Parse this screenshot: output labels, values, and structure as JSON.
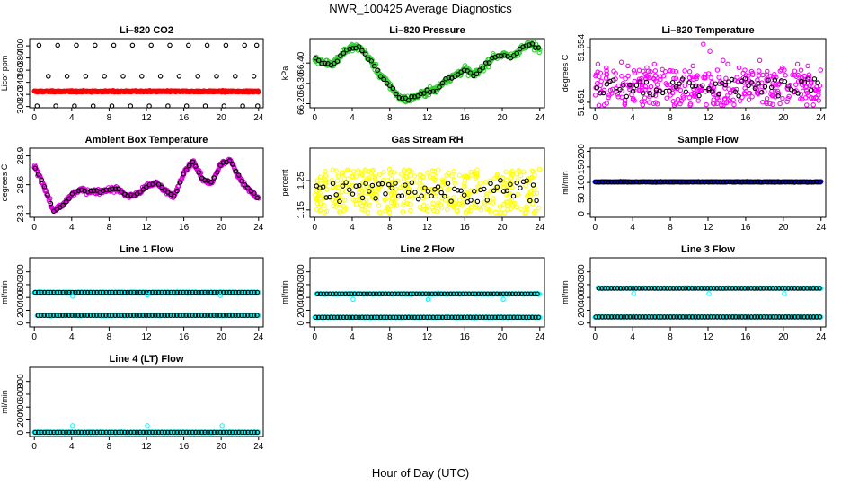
{
  "figure": {
    "title": "NWR_100425  Average Diagnostics",
    "xlabel": "Hour of Day (UTC)"
  },
  "chart_data": [
    {
      "id": "co2",
      "type": "scatter",
      "title": "Li–820 CO2",
      "ylabel": "Licor ppm",
      "xlim": [
        -0.5,
        24.5
      ],
      "ylim": [
        298,
        412
      ],
      "yticks": [
        300,
        320,
        340,
        360,
        380,
        400
      ],
      "xticks": [
        0,
        4,
        8,
        12,
        16,
        20,
        24
      ],
      "series": [
        {
          "name": "reference",
          "color": "#ff0000",
          "style": "dense_band",
          "x0": 0,
          "x1": 24,
          "y": 325,
          "jitter": 1.5
        },
        {
          "name": "ring_top",
          "color": "#000000",
          "style": "open",
          "x": [
            0.5,
            2.5,
            4.5,
            6.5,
            8.5,
            10.5,
            12.5,
            14.5,
            16.5,
            18.5,
            20.5,
            22.5,
            23.8
          ],
          "y": 401
        },
        {
          "name": "ring_mid",
          "color": "#000000",
          "style": "open",
          "x": [
            1.5,
            3.5,
            5.5,
            7.5,
            9.5,
            11.5,
            13.5,
            15.5,
            17.5,
            19.5,
            21.5,
            23.5
          ],
          "y": 350
        },
        {
          "name": "ring_bottom",
          "color": "#000000",
          "style": "open",
          "x": [
            0.3,
            2.3,
            4.3,
            6.3,
            8.3,
            10.3,
            12.3,
            14.3,
            16.3,
            18.3,
            20.3,
            22.3,
            23.9
          ],
          "y": 301
        }
      ]
    },
    {
      "id": "pressure",
      "type": "scatter",
      "title": "Li–820 Pressure",
      "ylabel": "kPa",
      "xlim": [
        -0.5,
        24.5
      ],
      "ylim": [
        66.18,
        66.52
      ],
      "yticks": [
        66.2,
        66.3,
        66.4
      ],
      "ytick_labels": [
        "66.20",
        "66.30",
        "66.40"
      ],
      "xticks": [
        0,
        4,
        8,
        12,
        16,
        20,
        24
      ],
      "series": [
        {
          "name": "pressure",
          "color": "#33cc33",
          "style": "curve_dense",
          "x": [
            0,
            1,
            2,
            3,
            4,
            5,
            6,
            7,
            8,
            9,
            10,
            11,
            12,
            13,
            14,
            15,
            16,
            17,
            18,
            19,
            20,
            21,
            22,
            23,
            24
          ],
          "y": [
            66.42,
            66.4,
            66.4,
            66.45,
            66.48,
            66.47,
            66.41,
            66.34,
            66.29,
            66.23,
            66.22,
            66.24,
            66.26,
            66.27,
            66.32,
            66.34,
            66.37,
            66.34,
            66.38,
            66.43,
            66.44,
            66.43,
            66.47,
            66.49,
            66.47
          ],
          "jitter": 0.012
        }
      ]
    },
    {
      "id": "li820temp",
      "type": "scatter",
      "title": "Li–820 Temperature",
      "ylabel": "degrees C",
      "xlim": [
        -0.5,
        24.5
      ],
      "ylim": [
        51.6507,
        51.6545
      ],
      "yticks": [
        51.651,
        51.654
      ],
      "ytick_labels": [
        "51.651",
        "51.654"
      ],
      "xticks": [
        0,
        4,
        8,
        12,
        16,
        20,
        24
      ],
      "series": [
        {
          "name": "temperature",
          "color": "#ff00ff",
          "style": "scatter_noise",
          "x0": 0,
          "x1": 24,
          "y": [
            51.6508,
            51.6528
          ],
          "count": 350
        },
        {
          "name": "outliers",
          "color": "#ff00ff",
          "style": "open",
          "x": [
            0.3,
            1.2,
            2.8,
            3.5,
            5.5,
            6.3,
            10.4,
            11.5,
            12.2,
            13.6,
            14.1,
            15.3,
            17.5,
            19.9,
            21.5,
            22.6
          ],
          "y": [
            51.6531,
            51.6529,
            51.6532,
            51.653,
            51.6529,
            51.6531,
            51.653,
            51.6542,
            51.6538,
            51.6533,
            51.6531,
            51.6529,
            51.6533,
            51.6529,
            51.6531,
            51.653
          ]
        }
      ]
    },
    {
      "id": "boxtemp",
      "type": "scatter",
      "title": "Ambient Box Temperature",
      "ylabel": "degrees C",
      "xlim": [
        -0.5,
        24.5
      ],
      "ylim": [
        28.26,
        28.98
      ],
      "yticks": [
        28.3,
        28.6,
        28.9
      ],
      "ytick_labels": [
        "28.3",
        "28.6",
        "28.9"
      ],
      "xticks": [
        0,
        4,
        8,
        12,
        16,
        20,
        24
      ],
      "series": [
        {
          "name": "box_temperature",
          "color": "#dd00dd",
          "style": "curve_dense",
          "x": [
            0,
            1,
            2,
            3,
            4,
            5,
            6,
            7,
            8,
            9,
            10,
            11,
            12,
            13,
            14,
            15,
            16,
            17,
            18,
            19,
            20,
            21,
            22,
            23,
            24
          ],
          "y": [
            28.8,
            28.6,
            28.33,
            28.38,
            28.5,
            28.55,
            28.53,
            28.53,
            28.55,
            28.55,
            28.48,
            28.5,
            28.58,
            28.62,
            28.54,
            28.48,
            28.72,
            28.85,
            28.65,
            28.62,
            28.82,
            28.85,
            28.66,
            28.55,
            28.45
          ],
          "jitter": 0.018
        }
      ]
    },
    {
      "id": "rh",
      "type": "scatter",
      "title": "Gas Stream RH",
      "ylabel": "percent",
      "xlim": [
        -0.5,
        24.5
      ],
      "ylim": [
        1.125,
        1.36
      ],
      "yticks": [
        1.15,
        1.25
      ],
      "ytick_labels": [
        "1.15",
        "1.25"
      ],
      "xticks": [
        0,
        4,
        8,
        12,
        16,
        20,
        24
      ],
      "series": [
        {
          "name": "rh",
          "color": "#ffff00",
          "style": "scatter_noise",
          "x0": 0,
          "x1": 24,
          "y": [
            1.14,
            1.29
          ],
          "count": 420
        }
      ]
    },
    {
      "id": "sampleflow",
      "type": "scatter",
      "title": "Sample Flow",
      "ylabel": "ml/min",
      "xlim": [
        -0.5,
        24.5
      ],
      "ylim": [
        -12,
        210
      ],
      "yticks": [
        0,
        50,
        100,
        150,
        200
      ],
      "xticks": [
        0,
        4,
        8,
        12,
        16,
        20,
        24
      ],
      "series": [
        {
          "name": "sample_flow",
          "color": "#0000ff",
          "style": "line_of_points",
          "x0": 0,
          "x1": 24,
          "y": 102
        }
      ]
    },
    {
      "id": "line1",
      "type": "scatter",
      "title": "Line 1 Flow",
      "ylabel": "ml/min",
      "xlim": [
        -0.5,
        24.5
      ],
      "ylim": [
        -60,
        1020
      ],
      "yticks": [
        0,
        200,
        400,
        600,
        800
      ],
      "xticks": [
        0,
        4,
        8,
        12,
        16,
        20,
        24
      ],
      "series": [
        {
          "name": "sample_line",
          "color": "#00ffff",
          "style": "line_of_points",
          "x0": 0,
          "x1": 24,
          "y": 480,
          "dips": [
            [
              4.1,
              420
            ],
            [
              12.1,
              440
            ],
            [
              19.9,
              430
            ]
          ]
        },
        {
          "name": "flush_line",
          "color": "#00ffff",
          "style": "line_of_points",
          "x0": 0.3,
          "x1": 24,
          "y": 120
        }
      ]
    },
    {
      "id": "line2",
      "type": "scatter",
      "title": "Line 2 Flow",
      "ylabel": "ml/min",
      "xlim": [
        -0.5,
        24.5
      ],
      "ylim": [
        -60,
        1020
      ],
      "yticks": [
        0,
        200,
        400,
        600,
        800
      ],
      "xticks": [
        0,
        4,
        8,
        12,
        16,
        20,
        24
      ],
      "series": [
        {
          "name": "sample_line",
          "color": "#00ffff",
          "style": "line_of_points",
          "x0": 0.2,
          "x1": 24,
          "y": 455,
          "dips": [
            [
              4.1,
              370
            ],
            [
              12.1,
              370
            ],
            [
              20.1,
              370
            ]
          ]
        },
        {
          "name": "flush_line",
          "color": "#00ffff",
          "style": "line_of_points",
          "x0": 0,
          "x1": 24,
          "y": 90
        }
      ]
    },
    {
      "id": "line3",
      "type": "scatter",
      "title": "Line 3 Flow",
      "ylabel": "ml/min",
      "xlim": [
        -0.5,
        24.5
      ],
      "ylim": [
        -60,
        1020
      ],
      "yticks": [
        0,
        200,
        400,
        600,
        800
      ],
      "xticks": [
        0,
        4,
        8,
        12,
        16,
        20,
        24
      ],
      "series": [
        {
          "name": "sample_line",
          "color": "#00ffff",
          "style": "line_of_points",
          "x0": 0.3,
          "x1": 24,
          "y": 545,
          "dips": [
            [
              4.1,
              460
            ],
            [
              12.1,
              460
            ],
            [
              20.1,
              460
            ]
          ]
        },
        {
          "name": "flush_line",
          "color": "#00ffff",
          "style": "line_of_points",
          "x0": 0,
          "x1": 24,
          "y": 95
        }
      ]
    },
    {
      "id": "line4",
      "type": "scatter",
      "title": "Line 4 (LT) Flow",
      "ylabel": "ml/min",
      "xlim": [
        -0.5,
        24.5
      ],
      "ylim": [
        -60,
        1020
      ],
      "yticks": [
        0,
        200,
        400,
        600,
        800
      ],
      "xticks": [
        0,
        4,
        8,
        12,
        16,
        20,
        24
      ],
      "series": [
        {
          "name": "flow",
          "color": "#00ffff",
          "style": "line_of_points",
          "x0": 0,
          "x1": 24,
          "y": 5
        },
        {
          "name": "spikes",
          "color": "#00ffff",
          "style": "open",
          "x": [
            4.1,
            12.1,
            20.1
          ],
          "y": 110
        }
      ]
    }
  ]
}
